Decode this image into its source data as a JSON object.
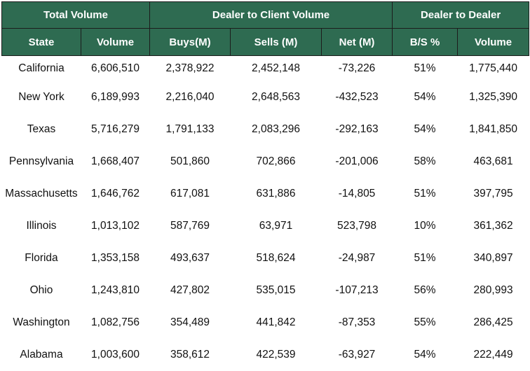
{
  "group_headers": [
    {
      "label": "Total Volume",
      "span": 2
    },
    {
      "label": "Dealer to Client Volume",
      "span": 3
    },
    {
      "label": "Dealer to Dealer",
      "span": 2
    }
  ],
  "columns": [
    "State",
    "Volume",
    "Buys(M)",
    "Sells (M)",
    "Net (M)",
    "B/S %",
    "Volume"
  ],
  "rows": [
    [
      "California",
      "6,606,510",
      "2,378,922",
      "2,452,148",
      "-73,226",
      "51%",
      "1,775,440"
    ],
    [
      "New York",
      "6,189,993",
      "2,216,040",
      "2,648,563",
      "-432,523",
      "54%",
      "1,325,390"
    ],
    [
      "Texas",
      "5,716,279",
      "1,791,133",
      "2,083,296",
      "-292,163",
      "54%",
      "1,841,850"
    ],
    [
      "Pennsylvania",
      "1,668,407",
      "501,860",
      "702,866",
      "-201,006",
      "58%",
      "463,681"
    ],
    [
      "Massachusetts",
      "1,646,762",
      "617,081",
      "631,886",
      "-14,805",
      "51%",
      "397,795"
    ],
    [
      "Illinois",
      "1,013,102",
      "587,769",
      "63,971",
      "523,798",
      "10%",
      "361,362"
    ],
    [
      "Florida",
      "1,353,158",
      "493,637",
      "518,624",
      "-24,987",
      "51%",
      "340,897"
    ],
    [
      "Ohio",
      "1,243,810",
      "427,802",
      "535,015",
      "-107,213",
      "56%",
      "280,993"
    ],
    [
      "Washington",
      "1,082,756",
      "354,489",
      "441,842",
      "-87,353",
      "55%",
      "286,425"
    ],
    [
      "Alabama",
      "1,003,600",
      "358,612",
      "422,539",
      "-63,927",
      "54%",
      "222,449"
    ]
  ],
  "colors": {
    "header_bg": "#2e6b51",
    "header_text": "#ffffff"
  }
}
